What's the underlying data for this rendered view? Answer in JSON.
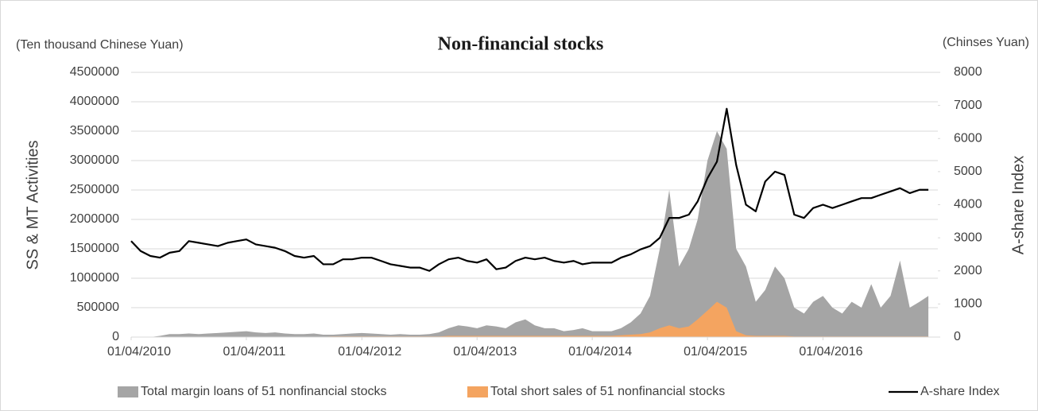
{
  "chart_data": {
    "type": "area-line",
    "title": "Non-financial stocks",
    "y_unit": "(Ten thousand Chinese Yuan)",
    "y2_unit": "(Chinses Yuan)",
    "ylabel": "SS & MT Activities",
    "y2label": "A-share Index",
    "x": [
      "2010-04-01",
      "2010-05-01",
      "2010-06-01",
      "2010-07-01",
      "2010-08-01",
      "2010-09-01",
      "2010-10-01",
      "2010-11-01",
      "2010-12-01",
      "2011-01-01",
      "2011-02-01",
      "2011-03-01",
      "2011-04-01",
      "2011-05-01",
      "2011-06-01",
      "2011-07-01",
      "2011-08-01",
      "2011-09-01",
      "2011-10-01",
      "2011-11-01",
      "2011-12-01",
      "2012-01-01",
      "2012-02-01",
      "2012-03-01",
      "2012-04-01",
      "2012-05-01",
      "2012-06-01",
      "2012-07-01",
      "2012-08-01",
      "2012-09-01",
      "2012-10-01",
      "2012-11-01",
      "2012-12-01",
      "2013-01-01",
      "2013-02-01",
      "2013-03-01",
      "2013-04-01",
      "2013-05-01",
      "2013-06-01",
      "2013-07-01",
      "2013-08-01",
      "2013-09-01",
      "2013-10-01",
      "2013-11-01",
      "2013-12-01",
      "2014-01-01",
      "2014-02-01",
      "2014-03-01",
      "2014-04-01",
      "2014-05-01",
      "2014-06-01",
      "2014-07-01",
      "2014-08-01",
      "2014-09-01",
      "2014-10-01",
      "2014-11-01",
      "2014-12-01",
      "2015-01-01",
      "2015-02-01",
      "2015-03-01",
      "2015-04-01",
      "2015-05-01",
      "2015-06-01",
      "2015-07-01",
      "2015-08-01",
      "2015-09-01",
      "2015-10-01",
      "2015-11-01",
      "2015-12-01",
      "2016-01-01",
      "2016-02-01",
      "2016-03-01",
      "2016-04-01",
      "2016-05-01",
      "2016-06-01",
      "2016-07-01",
      "2016-08-01",
      "2016-09-01",
      "2016-10-01",
      "2016-11-01",
      "2016-12-01",
      "2017-01-01",
      "2017-02-01",
      "2017-03-01"
    ],
    "series": [
      {
        "name": "Total margin loans of 51 nonfinancial stocks",
        "color": "#a5a5a5",
        "kind": "area",
        "values": [
          0,
          0,
          0,
          20000,
          50000,
          50000,
          60000,
          50000,
          60000,
          70000,
          80000,
          90000,
          100000,
          80000,
          70000,
          80000,
          60000,
          50000,
          50000,
          60000,
          40000,
          40000,
          50000,
          60000,
          70000,
          60000,
          50000,
          40000,
          50000,
          40000,
          40000,
          50000,
          80000,
          150000,
          200000,
          180000,
          150000,
          200000,
          180000,
          150000,
          250000,
          300000,
          200000,
          150000,
          150000,
          100000,
          120000,
          150000,
          100000,
          100000,
          100000,
          150000,
          250000,
          400000,
          700000,
          1500000,
          2500000,
          1200000,
          1500000,
          2000000,
          3000000,
          3500000,
          3200000,
          1500000,
          1200000,
          600000,
          800000,
          1200000,
          1000000,
          500000,
          400000,
          600000,
          700000,
          500000,
          400000,
          600000,
          500000,
          900000,
          500000,
          700000,
          1300000,
          500000,
          600000,
          700000
        ]
      },
      {
        "name": "Total short sales of 51 nonfinancial stocks",
        "color": "#f4a460",
        "kind": "area",
        "values": [
          0,
          0,
          0,
          0,
          0,
          0,
          0,
          0,
          0,
          5000,
          5000,
          5000,
          5000,
          5000,
          5000,
          5000,
          5000,
          5000,
          5000,
          5000,
          5000,
          10000,
          10000,
          10000,
          10000,
          10000,
          10000,
          10000,
          10000,
          10000,
          10000,
          10000,
          10000,
          20000,
          20000,
          20000,
          20000,
          20000,
          20000,
          20000,
          20000,
          20000,
          20000,
          20000,
          20000,
          20000,
          20000,
          20000,
          20000,
          20000,
          20000,
          30000,
          40000,
          50000,
          80000,
          150000,
          200000,
          150000,
          180000,
          300000,
          450000,
          600000,
          500000,
          100000,
          30000,
          20000,
          20000,
          20000,
          20000,
          10000,
          10000,
          10000,
          10000,
          10000,
          10000,
          10000,
          10000,
          10000,
          10000,
          10000,
          10000,
          10000,
          10000,
          10000
        ]
      },
      {
        "name": "A-share Index",
        "color": "#000000",
        "kind": "line",
        "axis": "y2",
        "values": [
          2900,
          2600,
          2450,
          2400,
          2550,
          2600,
          2900,
          2850,
          2800,
          2750,
          2850,
          2900,
          2950,
          2800,
          2750,
          2700,
          2600,
          2450,
          2400,
          2450,
          2200,
          2200,
          2350,
          2350,
          2400,
          2400,
          2300,
          2200,
          2150,
          2100,
          2100,
          2000,
          2200,
          2350,
          2400,
          2300,
          2250,
          2350,
          2050,
          2100,
          2300,
          2400,
          2350,
          2400,
          2300,
          2250,
          2300,
          2200,
          2250,
          2250,
          2250,
          2400,
          2500,
          2650,
          2750,
          3000,
          3600,
          3600,
          3700,
          4100,
          4800,
          5300,
          6900,
          5200,
          4000,
          3800,
          4700,
          5000,
          4900,
          3700,
          3600,
          3900,
          4000,
          3900,
          4000,
          4100,
          4200,
          4200,
          4300,
          4400,
          4500,
          4350,
          4450,
          4450
        ]
      }
    ],
    "xlim": [
      "2010-04-01",
      "2017-03-31"
    ],
    "xticks": [
      {
        "value": "2010-04-01",
        "label": "01/04/2010"
      },
      {
        "value": "2011-04-01",
        "label": "01/04/2011"
      },
      {
        "value": "2012-04-01",
        "label": "01/04/2012"
      },
      {
        "value": "2013-04-01",
        "label": "01/04/2013"
      },
      {
        "value": "2014-04-01",
        "label": "01/04/2014"
      },
      {
        "value": "2015-04-01",
        "label": "01/04/2015"
      },
      {
        "value": "2016-04-01",
        "label": "01/04/2016"
      }
    ],
    "ylim": [
      0,
      4500000
    ],
    "yticks": [
      0,
      500000,
      1000000,
      1500000,
      2000000,
      2500000,
      3000000,
      3500000,
      4000000,
      4500000
    ],
    "y2lim": [
      0,
      8000
    ],
    "y2ticks": [
      0,
      1000,
      2000,
      3000,
      4000,
      5000,
      6000,
      7000,
      8000
    ],
    "grid": true,
    "legend": "bottom"
  }
}
